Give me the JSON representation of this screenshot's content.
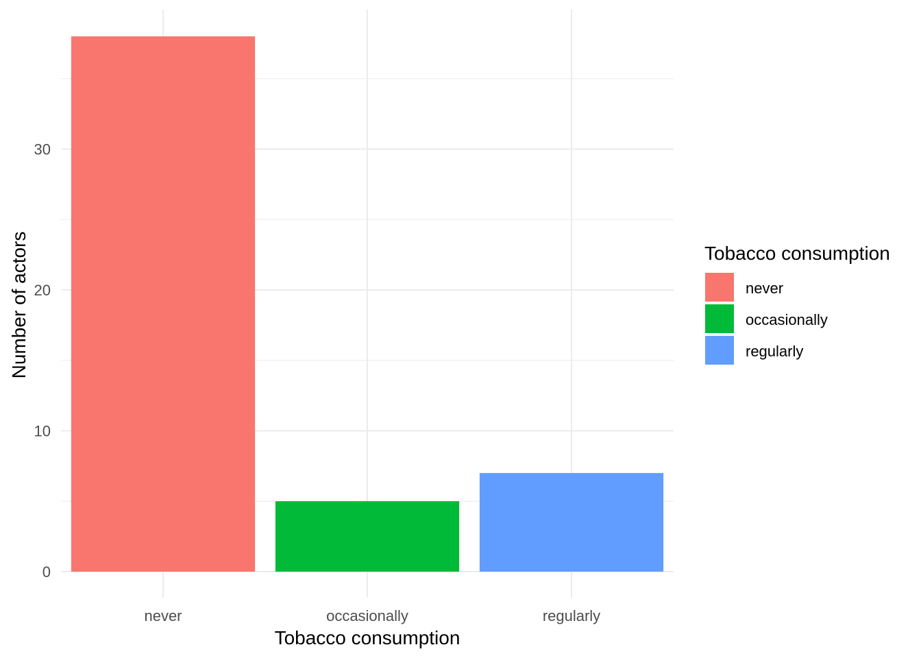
{
  "chart_data": {
    "type": "bar",
    "categories": [
      "never",
      "occasionally",
      "regularly"
    ],
    "values": [
      38,
      5,
      7
    ],
    "colors": [
      "#F8766D",
      "#00BA38",
      "#619CFF"
    ],
    "xlabel": "Tobacco consumption",
    "ylabel": "Number of actors",
    "ylim": [
      0,
      39.9
    ],
    "yticks": [
      0,
      10,
      20,
      30
    ],
    "grid": true,
    "legend": {
      "title": "Tobacco consumption",
      "placement": "right",
      "entries": [
        "never",
        "occasionally",
        "regularly"
      ]
    }
  }
}
